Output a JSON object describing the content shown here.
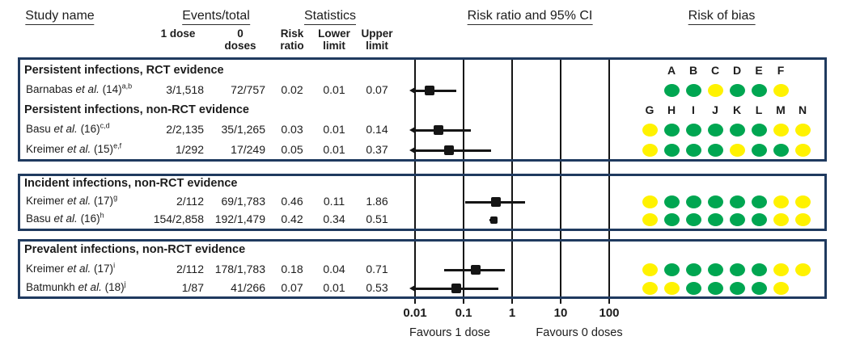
{
  "figure": {
    "headers": {
      "study_name": "Study name",
      "events_total": "Events/total",
      "statistics": "Statistics",
      "risk_ratio_ci": "Risk ratio and 95% CI",
      "risk_of_bias": "Risk of bias"
    },
    "subheaders": {
      "dose1": "1 dose",
      "dose0_line1": "0",
      "dose0_line2": "doses",
      "rr_line1": "Risk",
      "rr_line2": "ratio",
      "lower_line1": "Lower",
      "lower_line2": "limit",
      "upper_line1": "Upper",
      "upper_line2": "limit"
    },
    "axis": {
      "ticks": [
        "0.01",
        "0.1",
        "1",
        "10",
        "100"
      ],
      "favours_left": "Favours 1 dose",
      "favours_right": "Favours 0 doses"
    },
    "rob": {
      "letters_top": [
        "A",
        "B",
        "C",
        "D",
        "E",
        "F"
      ],
      "letters_bottom": [
        "G",
        "H",
        "I",
        "J",
        "K",
        "L",
        "M",
        "N"
      ]
    },
    "colors": {
      "green": "#00A651",
      "yellow": "#FFF200",
      "navy": "#1F3A5F",
      "line": "#151515"
    },
    "panels": [
      {
        "rows": [
          {
            "type": "group",
            "label": "Persistent infections, RCT evidence"
          },
          {
            "type": "study",
            "pre": "Barnabas ",
            "etal": "et al.",
            "post": " (14)",
            "sup": "a,b",
            "d1": "3/1,518",
            "d0": "72/757",
            "rr": "0.02",
            "lo": "0.01",
            "up": "0.07",
            "rrv": 0.02,
            "lov": 0.01,
            "upv": 0.07,
            "arrow": true,
            "marker_size": 12,
            "dots": "GGYGGY",
            "dot_start": 1
          },
          {
            "type": "group",
            "label": "Persistent infections, non-RCT evidence"
          },
          {
            "type": "study",
            "pre": "Basu ",
            "etal": "et al.",
            "post": " (16)",
            "sup": "c,d",
            "d1": "2/2,135",
            "d0": "35/1,265",
            "rr": "0.03",
            "lo": "0.01",
            "up": "0.14",
            "rrv": 0.03,
            "lov": 0.01,
            "upv": 0.14,
            "arrow": true,
            "marker_size": 12,
            "dots": "YGGGGGYY",
            "dot_start": 0
          },
          {
            "type": "study",
            "pre": "Kreimer ",
            "etal": "et al.",
            "post": " (15)",
            "sup": "e,f",
            "d1": "1/292",
            "d0": "17/249",
            "rr": "0.05",
            "lo": "0.01",
            "up": "0.37",
            "rrv": 0.05,
            "lov": 0.01,
            "upv": 0.37,
            "arrow": true,
            "marker_size": 12,
            "dots": "YGGGYGGY",
            "dot_start": 0
          }
        ]
      },
      {
        "rows": [
          {
            "type": "group",
            "label": "Incident infections, non-RCT evidence"
          },
          {
            "type": "study",
            "pre": "Kreimer ",
            "etal": "et al.",
            "post": " (17)",
            "sup": "g",
            "d1": "2/112",
            "d0": "69/1,783",
            "rr": "0.46",
            "lo": "0.11",
            "up": "1.86",
            "rrv": 0.46,
            "lov": 0.11,
            "upv": 1.86,
            "arrow": false,
            "marker_size": 12,
            "dots": "YGGGGGYY",
            "dot_start": 0
          },
          {
            "type": "study",
            "pre": "Basu ",
            "etal": "et al.",
            "post": " (16)",
            "sup": "h",
            "d1": "154/2,858",
            "d0": "192/1,479",
            "rr": "0.42",
            "lo": "0.34",
            "up": "0.51",
            "rrv": 0.42,
            "lov": 0.34,
            "upv": 0.51,
            "arrow": false,
            "marker_size": 9,
            "dots": "YGGGGGYY",
            "dot_start": 0
          }
        ]
      },
      {
        "rows": [
          {
            "type": "group",
            "label": "Prevalent infections, non-RCT evidence"
          },
          {
            "type": "study",
            "pre": "Kreimer ",
            "etal": "et al.",
            "post": " (17)",
            "sup": "i",
            "d1": "2/112",
            "d0": "178/1,783",
            "rr": "0.18",
            "lo": "0.04",
            "up": "0.71",
            "rrv": 0.18,
            "lov": 0.04,
            "upv": 0.71,
            "arrow": false,
            "marker_size": 12,
            "dots": "YGGGGGYY",
            "dot_start": 0
          },
          {
            "type": "study",
            "pre": "Batmunkh ",
            "etal": "et al.",
            "post": " (18)",
            "sup": "j",
            "d1": "1/87",
            "d0": "41/266",
            "rr": "0.07",
            "lo": "0.01",
            "up": "0.53",
            "rrv": 0.07,
            "lov": 0.01,
            "upv": 0.53,
            "arrow": true,
            "marker_size": 12,
            "dots": "YYGGGGY",
            "dot_start": 0
          }
        ]
      }
    ]
  },
  "chart_data": {
    "type": "scatter",
    "subtype": "forest_plot",
    "title": "",
    "x_scale": "log10",
    "x_ticks": [
      0.01,
      0.1,
      1,
      10,
      100
    ],
    "x_range": [
      0.01,
      100
    ],
    "xlabel_left": "Favours 1 dose",
    "xlabel_right": "Favours 0 doses",
    "columns": [
      "Study name",
      "Events/total 1 dose",
      "Events/total 0 doses",
      "Risk ratio",
      "Lower limit",
      "Upper limit",
      "Risk ratio and 95% CI",
      "Risk of bias"
    ],
    "risk_of_bias_domains": [
      "A",
      "B",
      "C",
      "D",
      "E",
      "F",
      "G",
      "H",
      "I",
      "J",
      "K",
      "L",
      "M",
      "N"
    ],
    "groups": [
      {
        "label": "Persistent infections, RCT evidence",
        "studies": [
          {
            "study": "Barnabas et al. (14)",
            "footnotes": "a,b",
            "events_1_dose": "3/1,518",
            "events_0_doses": "72/757",
            "risk_ratio": 0.02,
            "lower_limit": 0.01,
            "upper_limit": 0.07,
            "ci_clipped_left": true,
            "risk_of_bias": {
              "A": "green",
              "B": "green",
              "C": "yellow",
              "D": "green",
              "E": "green",
              "F": "yellow"
            }
          }
        ]
      },
      {
        "label": "Persistent infections, non-RCT evidence",
        "studies": [
          {
            "study": "Basu et al. (16)",
            "footnotes": "c,d",
            "events_1_dose": "2/2,135",
            "events_0_doses": "35/1,265",
            "risk_ratio": 0.03,
            "lower_limit": 0.01,
            "upper_limit": 0.14,
            "ci_clipped_left": true,
            "risk_of_bias": {
              "G": "yellow",
              "H": "green",
              "I": "green",
              "J": "green",
              "K": "green",
              "L": "green",
              "M": "yellow",
              "N": "yellow"
            }
          },
          {
            "study": "Kreimer et al. (15)",
            "footnotes": "e,f",
            "events_1_dose": "1/292",
            "events_0_doses": "17/249",
            "risk_ratio": 0.05,
            "lower_limit": 0.01,
            "upper_limit": 0.37,
            "ci_clipped_left": true,
            "risk_of_bias": {
              "G": "yellow",
              "H": "green",
              "I": "green",
              "J": "green",
              "K": "yellow",
              "L": "green",
              "M": "green",
              "N": "yellow"
            }
          }
        ]
      },
      {
        "label": "Incident infections, non-RCT evidence",
        "studies": [
          {
            "study": "Kreimer et al. (17)",
            "footnotes": "g",
            "events_1_dose": "2/112",
            "events_0_doses": "69/1,783",
            "risk_ratio": 0.46,
            "lower_limit": 0.11,
            "upper_limit": 1.86,
            "ci_clipped_left": false,
            "risk_of_bias": {
              "G": "yellow",
              "H": "green",
              "I": "green",
              "J": "green",
              "K": "green",
              "L": "green",
              "M": "yellow",
              "N": "yellow"
            }
          },
          {
            "study": "Basu et al. (16)",
            "footnotes": "h",
            "events_1_dose": "154/2,858",
            "events_0_doses": "192/1,479",
            "risk_ratio": 0.42,
            "lower_limit": 0.34,
            "upper_limit": 0.51,
            "ci_clipped_left": false,
            "risk_of_bias": {
              "G": "yellow",
              "H": "green",
              "I": "green",
              "J": "green",
              "K": "green",
              "L": "green",
              "M": "yellow",
              "N": "yellow"
            }
          }
        ]
      },
      {
        "label": "Prevalent infections, non-RCT evidence",
        "studies": [
          {
            "study": "Kreimer et al. (17)",
            "footnotes": "i",
            "events_1_dose": "2/112",
            "events_0_doses": "178/1,783",
            "risk_ratio": 0.18,
            "lower_limit": 0.04,
            "upper_limit": 0.71,
            "ci_clipped_left": false,
            "risk_of_bias": {
              "G": "yellow",
              "H": "green",
              "I": "green",
              "J": "green",
              "K": "green",
              "L": "green",
              "M": "yellow",
              "N": "yellow"
            }
          },
          {
            "study": "Batmunkh et al. (18)",
            "footnotes": "j",
            "events_1_dose": "1/87",
            "events_0_doses": "41/266",
            "risk_ratio": 0.07,
            "lower_limit": 0.01,
            "upper_limit": 0.53,
            "ci_clipped_left": true,
            "risk_of_bias": {
              "G": "yellow",
              "H": "yellow",
              "I": "green",
              "J": "green",
              "K": "green",
              "L": "green",
              "M": "yellow"
            }
          }
        ]
      }
    ]
  }
}
